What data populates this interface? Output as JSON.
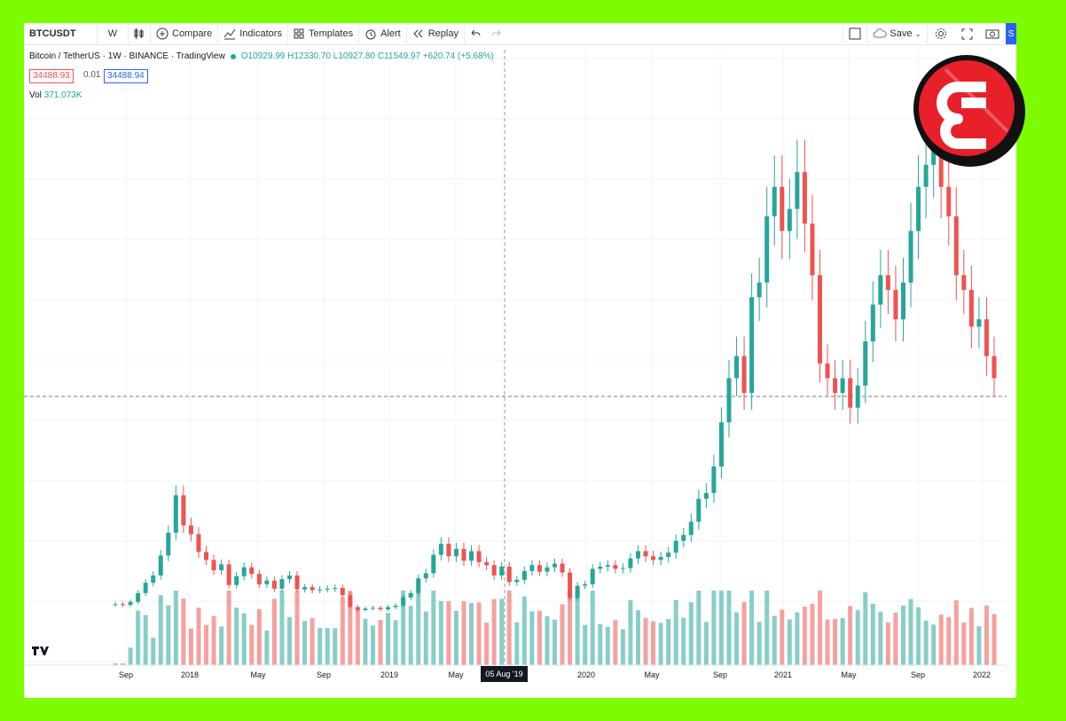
{
  "toolbar": {
    "symbol": "BTCUSDT",
    "interval": "W",
    "compare": "Compare",
    "indicators": "Indicators",
    "templates": "Templates",
    "alert": "Alert",
    "replay": "Replay",
    "save": "Save",
    "publish": "S"
  },
  "legend": {
    "title": "Bitcoin / TetherUS · 1W · BINANCE · TradingView",
    "ohlc": "O10929.99 H12330.70 L10927.80 C11549.97 +620.74 (+5.68%)"
  },
  "prices": {
    "sell": "34488.93",
    "spread": "0.01",
    "buy": "34488.94"
  },
  "volume": {
    "label": "Vol",
    "value": "371.073K"
  },
  "crosshair": {
    "date": "05 Aug '19"
  },
  "colors": {
    "up": "#26a69a",
    "down": "#ef5350",
    "frame": "#7dfc00",
    "logo": "#e8202a"
  },
  "chart_data": {
    "type": "candlestick",
    "x_labels": [
      "Sep",
      "2018",
      "May",
      "Sep",
      "2019",
      "May",
      "2020",
      "May",
      "Sep",
      "2021",
      "May",
      "Sep",
      "2022"
    ],
    "series_close": [
      4300,
      4200,
      4600,
      5800,
      7200,
      8200,
      10900,
      14000,
      19100,
      15000,
      13800,
      11400,
      10300,
      8900,
      9700,
      6900,
      8100,
      9300,
      8400,
      7000,
      7500,
      6400,
      7700,
      8200,
      6300,
      6600,
      6200,
      6300,
      6400,
      6500,
      5500,
      3900,
      3500,
      3700,
      3800,
      3600,
      3900,
      4100,
      5200,
      5800,
      7800,
      8500,
      11000,
      12500,
      10800,
      11800,
      10200,
      11500,
      10000,
      9600,
      8200,
      9400,
      7300,
      7600,
      8800,
      9600,
      8700,
      9300,
      9800,
      8600,
      5100,
      6800,
      7000,
      9100,
      9400,
      9600,
      9100,
      9200,
      10500,
      11500,
      10800,
      10300,
      10700,
      11300,
      12900,
      13700,
      15500,
      18600,
      19400,
      23000,
      29000,
      35000,
      38000,
      33000,
      46000,
      48000,
      57000,
      61000,
      55000,
      58000,
      63000,
      56000,
      49000,
      37000,
      35000,
      33000,
      35000,
      31000,
      34000,
      40000,
      45000,
      49000,
      47000,
      43000,
      48000,
      55000,
      61000,
      64000,
      66000,
      61000,
      57000,
      49000,
      47000,
      42000,
      43000,
      38000,
      35000
    ]
  }
}
